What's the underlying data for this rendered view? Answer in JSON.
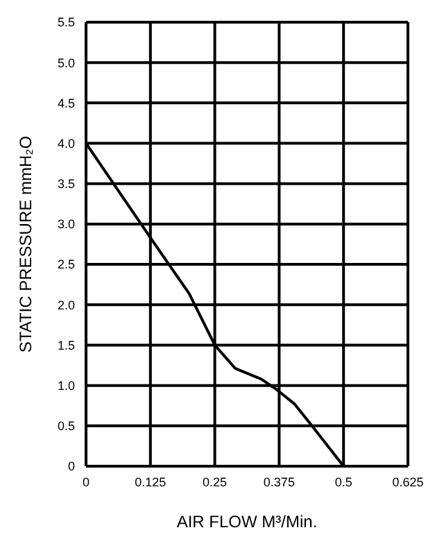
{
  "chart_data": {
    "type": "line",
    "xlabel": "AIR FLOW    M³/Min.",
    "ylabel": "STATIC PRESSURE    mmH₂O",
    "series": [
      {
        "color": "#000000",
        "x": [
          0,
          0.125,
          0.2,
          0.25,
          0.29,
          0.34,
          0.37,
          0.405,
          0.44,
          0.5
        ],
        "values": [
          4.0,
          2.83,
          2.14,
          1.5,
          1.21,
          1.08,
          0.95,
          0.77,
          0.49,
          0
        ]
      }
    ],
    "xlim": [
      0,
      0.625
    ],
    "xticks": [
      0,
      0.125,
      0.25,
      0.375,
      0.5,
      0.625
    ],
    "ylim": [
      0,
      5.5
    ],
    "yticks": [
      0,
      0.5,
      {
        "value": 1,
        "label": "1.0"
      },
      1.5,
      {
        "value": 2,
        "label": "2.0"
      },
      2.5,
      {
        "value": 3,
        "label": "3.0"
      },
      3.5,
      {
        "value": 4,
        "label": "4.0"
      },
      4.5,
      {
        "value": 5,
        "label": "5.0"
      },
      5.5
    ],
    "grid": true,
    "marker": "none",
    "line_style": "solid"
  }
}
